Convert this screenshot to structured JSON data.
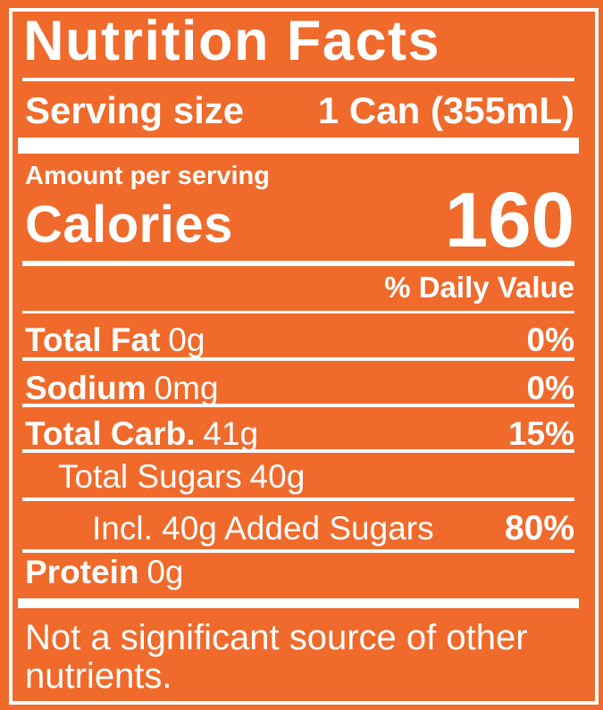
{
  "label": {
    "title": "Nutrition Facts",
    "serving": {
      "label": "Serving size",
      "value": "1 Can (355mL)"
    },
    "amount_per_serving": "Amount per serving",
    "calories_label": "Calories",
    "calories_value": "160",
    "daily_value_header": "% Daily Value",
    "rows": [
      {
        "name": "Total Fat",
        "amount": "0g",
        "dv": "0%"
      },
      {
        "name": "Sodium",
        "amount": "0mg",
        "dv": "0%"
      },
      {
        "name": "Total Carb.",
        "amount": "41g",
        "dv": "15%"
      },
      {
        "name": "Total Sugars",
        "amount": "40g",
        "dv": ""
      },
      {
        "name": "Incl. 40g Added Sugars",
        "amount": "",
        "dv": "80%"
      },
      {
        "name": "Protein",
        "amount": "0g",
        "dv": ""
      }
    ],
    "footnote": "Not a significant source of other nutrients.",
    "colors": {
      "background": "#EF6A2B",
      "text": "#FFFFFF"
    }
  }
}
